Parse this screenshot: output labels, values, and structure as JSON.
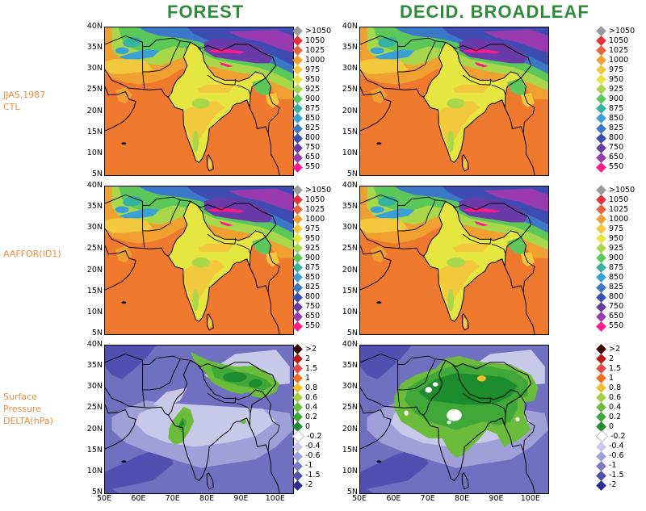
{
  "titles": {
    "left": "FOREST",
    "right": "DECID. BROADLEAF"
  },
  "rows": [
    {
      "label": "JJAS,1987\nCTL",
      "type": "abs"
    },
    {
      "label": "AAFFOR(ID1)",
      "type": "abs"
    },
    {
      "label": "Surface\nPressure\nDELTA(hPa)",
      "type": "delta"
    }
  ],
  "axes": {
    "lat_ticks": [
      "40N",
      "35N",
      "30N",
      "25N",
      "20N",
      "15N",
      "10N",
      "5N"
    ],
    "lon_ticks": [
      "50E",
      "60E",
      "70E",
      "80E",
      "90E",
      "100E"
    ]
  },
  "legend_abs": {
    "labels": [
      ">1050",
      "1050",
      "1025",
      "1000",
      "975",
      "950",
      "925",
      "900",
      "875",
      "850",
      "825",
      "800",
      "750",
      "650",
      "550"
    ],
    "colors": [
      "#9a9a9a",
      "#e8303a",
      "#e8643a",
      "#f0a030",
      "#f2c83c",
      "#e6e640",
      "#a8d84a",
      "#5cc85a",
      "#34b4a0",
      "#3aa0d8",
      "#3c78c8",
      "#3c4cb0",
      "#6a3aa8",
      "#9a3ab0",
      "#ff1a8c"
    ]
  },
  "legend_delta": {
    "labels": [
      ">2",
      "2",
      "1.5",
      "1",
      "0.8",
      "0.6",
      "0.4",
      "0.2",
      "0",
      "-0.2",
      "-0.4",
      "-0.6",
      "-1",
      "-1.5",
      "-2"
    ],
    "colors": [
      "#3a0a0a",
      "#c01818",
      "#e84848",
      "#f07020",
      "#f0c030",
      "#a0d040",
      "#6cbc3c",
      "#40a838",
      "#1c8c2c",
      "#ffffff",
      "#c8c8e8",
      "#a0a0d8",
      "#7878c4",
      "#5050b0",
      "#2a2a90"
    ]
  },
  "panels": [
    {
      "id": "r1c1",
      "row": 0,
      "col": 0
    },
    {
      "id": "r1c2",
      "row": 0,
      "col": 1
    },
    {
      "id": "r2c1",
      "row": 1,
      "col": 0
    },
    {
      "id": "r2c2",
      "row": 1,
      "col": 1
    },
    {
      "id": "r3c1",
      "row": 2,
      "col": 0,
      "variant": "forest"
    },
    {
      "id": "r3c2",
      "row": 2,
      "col": 1,
      "variant": "decid"
    }
  ]
}
